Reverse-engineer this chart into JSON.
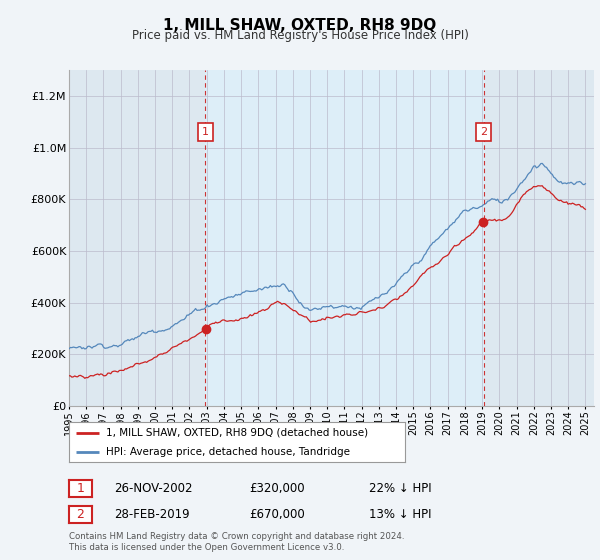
{
  "title": "1, MILL SHAW, OXTED, RH8 9DQ",
  "subtitle": "Price paid vs. HM Land Registry's House Price Index (HPI)",
  "legend_line1": "1, MILL SHAW, OXTED, RH8 9DQ (detached house)",
  "legend_line2": "HPI: Average price, detached house, Tandridge",
  "sale1_label": "1",
  "sale1_date": "26-NOV-2002",
  "sale1_price": "£320,000",
  "sale1_note": "22% ↓ HPI",
  "sale2_label": "2",
  "sale2_date": "28-FEB-2019",
  "sale2_price": "£670,000",
  "sale2_note": "13% ↓ HPI",
  "footer": "Contains HM Land Registry data © Crown copyright and database right 2024.\nThis data is licensed under the Open Government Licence v3.0.",
  "hpi_color": "#5588bb",
  "price_color": "#cc2222",
  "vline_color": "#cc3333",
  "background_color": "#f0f4f8",
  "plot_bg_color": "#dde8f0",
  "shade_color": "#dae4ef",
  "ylim_max": 1300000,
  "ylim_min": 0,
  "sale1_year": 2002.917,
  "sale2_year": 2019.083,
  "sale1_price_val": 320000,
  "sale2_price_val": 670000
}
